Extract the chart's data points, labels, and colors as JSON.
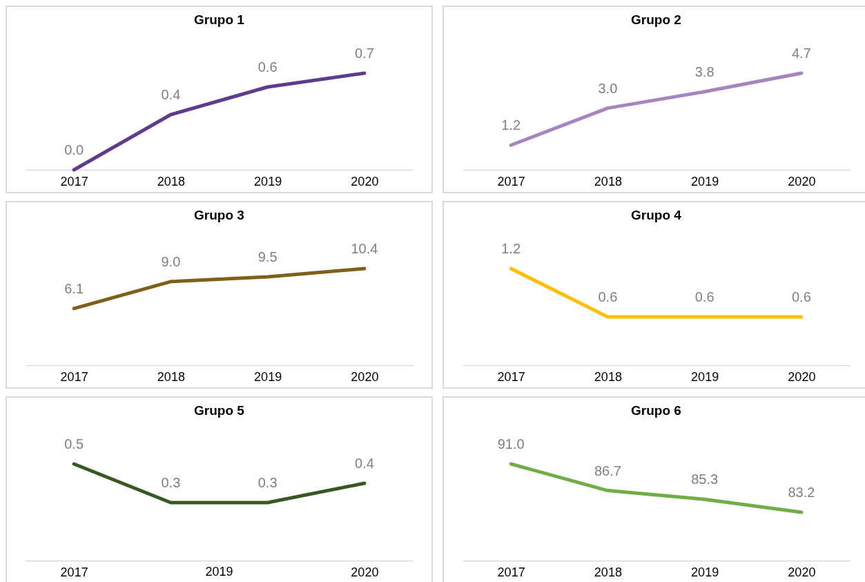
{
  "chart_data": [
    {
      "type": "line",
      "title": "Grupo 1",
      "categories": [
        "2017",
        "2018",
        "2019",
        "2020"
      ],
      "values": [
        0.0,
        0.4,
        0.6,
        0.7
      ],
      "value_labels": [
        "0.0",
        "0.4",
        "0.6",
        "0.7"
      ],
      "color": "#5f3b8e",
      "line_style": "solid",
      "tick_labels": "x"
    },
    {
      "type": "line",
      "title": "Grupo 2",
      "categories": [
        "2017",
        "2018",
        "2019",
        "2020"
      ],
      "values": [
        1.2,
        3.0,
        3.8,
        4.7
      ],
      "value_labels": [
        "1.2",
        "3.0",
        "3.8",
        "4.7"
      ],
      "color": "#a585bf",
      "line_style": "solid",
      "tick_labels": "x"
    },
    {
      "type": "line",
      "title": "Grupo 3",
      "categories": [
        "2017",
        "2018",
        "2019",
        "2020"
      ],
      "values": [
        6.1,
        9.0,
        9.5,
        10.4
      ],
      "value_labels": [
        "6.1",
        "9.0",
        "9.5",
        "10.4"
      ],
      "color": "#7f6018",
      "line_style": "solid",
      "tick_labels": "x"
    },
    {
      "type": "line",
      "title": "Grupo 4",
      "categories": [
        "2017",
        "2018",
        "2019",
        "2020"
      ],
      "values": [
        1.2,
        0.6,
        0.6,
        0.6
      ],
      "value_labels": [
        "1.2",
        "0.6",
        "0.6",
        "0.6"
      ],
      "color": "#ffc000",
      "line_style": "solid",
      "tick_labels": "x"
    },
    {
      "type": "line",
      "title": "Grupo 5",
      "categories": [
        "2017",
        null,
        null,
        "2020"
      ],
      "values": [
        0.5,
        0.3,
        0.3,
        0.4
      ],
      "value_labels": [
        "0.5",
        "0.3",
        "0.3",
        "0.4"
      ],
      "color": "#385723",
      "line_style": "solid",
      "tick_labels": "x",
      "annotations": [
        "2019"
      ]
    },
    {
      "type": "line",
      "title": "Grupo 6",
      "categories": [
        "2017",
        "2018",
        "2019",
        "2020"
      ],
      "values": [
        91.0,
        86.7,
        85.3,
        83.2
      ],
      "value_labels": [
        "91.0",
        "86.7",
        "85.3",
        "83.2"
      ],
      "color": "#70ad47",
      "line_style": "solid",
      "tick_labels": "x"
    }
  ]
}
